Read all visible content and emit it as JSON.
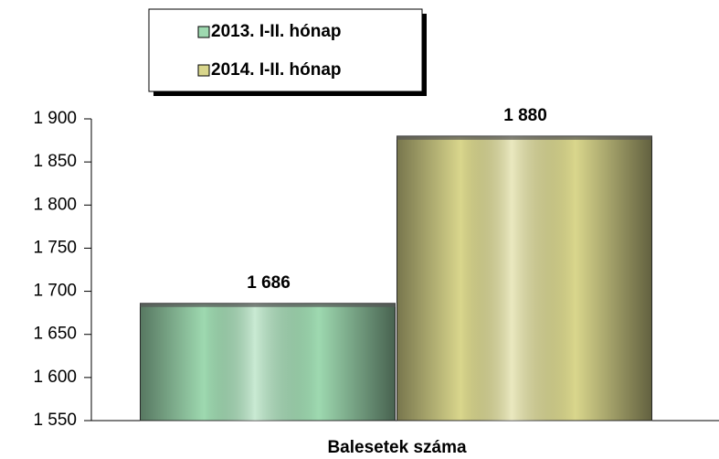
{
  "chart_data": {
    "type": "bar",
    "categories": [
      "Balesetek száma"
    ],
    "series": [
      {
        "name": "2013. I-II. hónap",
        "color": "#9ed9b0",
        "values": [
          1686
        ],
        "value_labels": [
          "1 686"
        ]
      },
      {
        "name": "2014. I-II. hónap",
        "color": "#d9d68c",
        "values": [
          1880
        ],
        "value_labels": [
          "1 880"
        ]
      }
    ],
    "ylim": [
      1550,
      1900
    ],
    "yticks": [
      {
        "value": 1550,
        "label": "1 550"
      },
      {
        "value": 1600,
        "label": "1 600"
      },
      {
        "value": 1650,
        "label": "1 650"
      },
      {
        "value": 1700,
        "label": "1 700"
      },
      {
        "value": 1750,
        "label": "1 750"
      },
      {
        "value": 1800,
        "label": "1 800"
      },
      {
        "value": 1850,
        "label": "1 850"
      },
      {
        "value": 1900,
        "label": "1 900"
      }
    ],
    "legend": "top"
  }
}
